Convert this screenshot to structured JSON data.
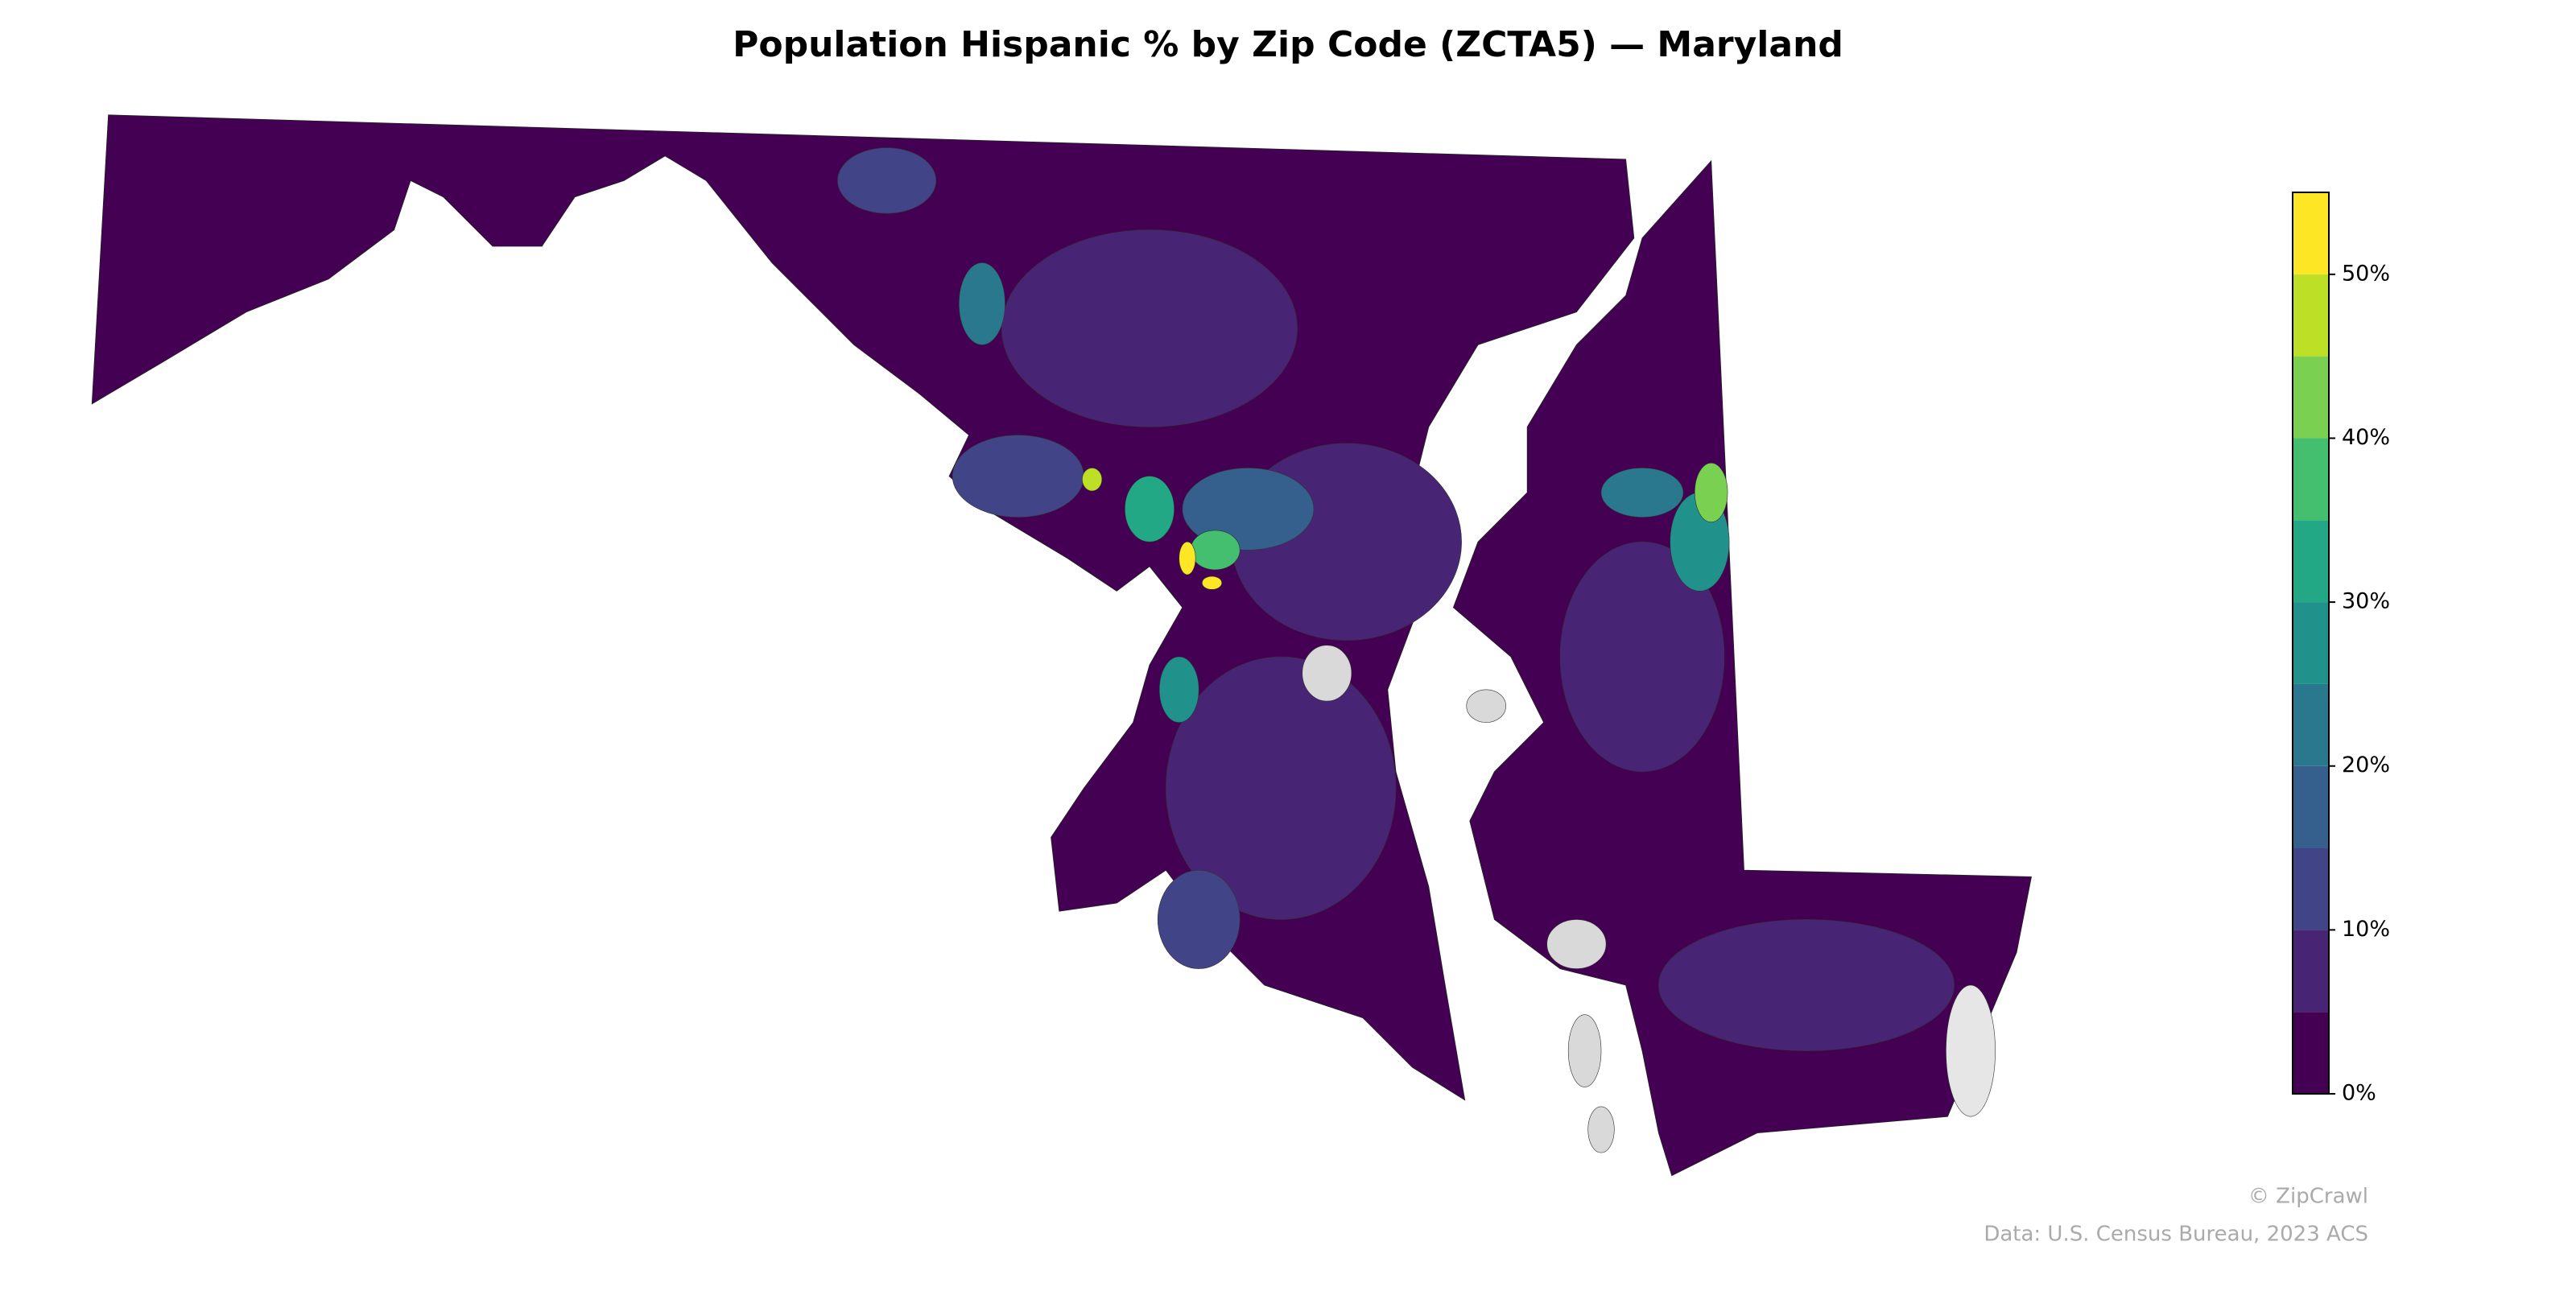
{
  "chart_data": {
    "type": "map",
    "title": "Population Hispanic % by Zip Code (ZCTA5) — Maryland",
    "colorbar": {
      "ylim": [
        0,
        55
      ],
      "bins": [
        0,
        5,
        10,
        15,
        20,
        25,
        30,
        35,
        40,
        45,
        50,
        55
      ],
      "colors": [
        "#440154",
        "#482475",
        "#414487",
        "#355f8d",
        "#2a788e",
        "#21918c",
        "#22a884",
        "#44bf70",
        "#7ad151",
        "#bddf26",
        "#fde725"
      ],
      "yticks": [
        {
          "value": 0,
          "label": "0%"
        },
        {
          "value": 10,
          "label": "10%"
        },
        {
          "value": 20,
          "label": "20%"
        },
        {
          "value": 30,
          "label": "30%"
        },
        {
          "value": 40,
          "label": "40%"
        },
        {
          "value": 50,
          "label": "50%"
        }
      ]
    },
    "credit": "© ZipCrawl",
    "source": "Data: U.S. Census Bureau, 2023 ACS"
  }
}
